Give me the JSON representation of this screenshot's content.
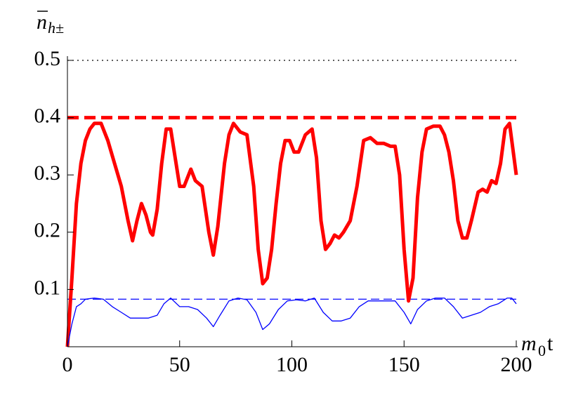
{
  "chart_data": {
    "type": "line",
    "ylabel": {
      "symbol": "n",
      "subscript": "h±"
    },
    "xlabel": {
      "symbol": "m",
      "subscript": "0",
      "suffix": "t"
    },
    "xlim": [
      0,
      200
    ],
    "ylim": [
      0,
      0.5
    ],
    "xticks": [
      0,
      50,
      100,
      150,
      200
    ],
    "yticks": [
      0.1,
      0.2,
      0.3,
      0.4,
      0.5
    ],
    "hlines": [
      {
        "value": 0.5,
        "color": "#000000",
        "style": "dotted",
        "width": 1.2
      },
      {
        "value": 0.4,
        "color": "#ff0000",
        "style": "dashed",
        "width": 5
      },
      {
        "value": 0.083,
        "color": "#0000ff",
        "style": "dashed",
        "width": 1.3
      }
    ],
    "series": [
      {
        "color": "#ff0000",
        "width": 5,
        "x": [
          0,
          2,
          4,
          6,
          8,
          10,
          12,
          15,
          18,
          21,
          24,
          27,
          29,
          31,
          33,
          35,
          37,
          38,
          40,
          42,
          44,
          46,
          48,
          50,
          52,
          55,
          57,
          60,
          63,
          65,
          67,
          70,
          72,
          74,
          77,
          80,
          83,
          85,
          87,
          89,
          91,
          93,
          95,
          97,
          99,
          101,
          103,
          106,
          109,
          111,
          113,
          115,
          117,
          119,
          121,
          123,
          126,
          129,
          132,
          135,
          138,
          141,
          144,
          146,
          148,
          150,
          152,
          154,
          156,
          158,
          160,
          163,
          166,
          168,
          170,
          172,
          174,
          176,
          178,
          180,
          183,
          185,
          187,
          189,
          191,
          193,
          195,
          197,
          199,
          200
        ],
        "values": [
          0,
          0.12,
          0.25,
          0.32,
          0.36,
          0.38,
          0.39,
          0.39,
          0.36,
          0.32,
          0.28,
          0.22,
          0.185,
          0.22,
          0.25,
          0.23,
          0.2,
          0.195,
          0.24,
          0.32,
          0.38,
          0.38,
          0.33,
          0.28,
          0.28,
          0.31,
          0.29,
          0.28,
          0.2,
          0.16,
          0.21,
          0.32,
          0.37,
          0.39,
          0.375,
          0.37,
          0.28,
          0.17,
          0.11,
          0.12,
          0.17,
          0.25,
          0.32,
          0.36,
          0.36,
          0.34,
          0.34,
          0.37,
          0.38,
          0.33,
          0.22,
          0.17,
          0.18,
          0.195,
          0.19,
          0.2,
          0.22,
          0.28,
          0.36,
          0.365,
          0.355,
          0.355,
          0.35,
          0.35,
          0.3,
          0.17,
          0.08,
          0.12,
          0.26,
          0.34,
          0.38,
          0.385,
          0.385,
          0.37,
          0.34,
          0.29,
          0.22,
          0.19,
          0.19,
          0.22,
          0.27,
          0.275,
          0.27,
          0.29,
          0.285,
          0.32,
          0.38,
          0.39,
          0.33,
          0.3
        ]
      },
      {
        "color": "#0000ff",
        "width": 1.3,
        "x": [
          0,
          2,
          4,
          6,
          8,
          12,
          16,
          20,
          24,
          28,
          32,
          36,
          40,
          43,
          46,
          50,
          54,
          58,
          62,
          65,
          68,
          72,
          76,
          80,
          84,
          87,
          90,
          94,
          98,
          102,
          106,
          110,
          114,
          118,
          122,
          126,
          130,
          134,
          138,
          142,
          146,
          150,
          153,
          156,
          160,
          164,
          168,
          172,
          176,
          180,
          184,
          188,
          192,
          196,
          198,
          200
        ],
        "values": [
          0,
          0.04,
          0.07,
          0.075,
          0.083,
          0.085,
          0.083,
          0.07,
          0.06,
          0.05,
          0.05,
          0.05,
          0.055,
          0.075,
          0.085,
          0.07,
          0.07,
          0.065,
          0.05,
          0.035,
          0.055,
          0.08,
          0.085,
          0.082,
          0.06,
          0.03,
          0.04,
          0.065,
          0.08,
          0.082,
          0.08,
          0.085,
          0.06,
          0.045,
          0.045,
          0.05,
          0.07,
          0.08,
          0.08,
          0.08,
          0.08,
          0.06,
          0.04,
          0.065,
          0.08,
          0.085,
          0.085,
          0.07,
          0.05,
          0.055,
          0.06,
          0.07,
          0.075,
          0.085,
          0.085,
          0.075
        ]
      }
    ]
  }
}
